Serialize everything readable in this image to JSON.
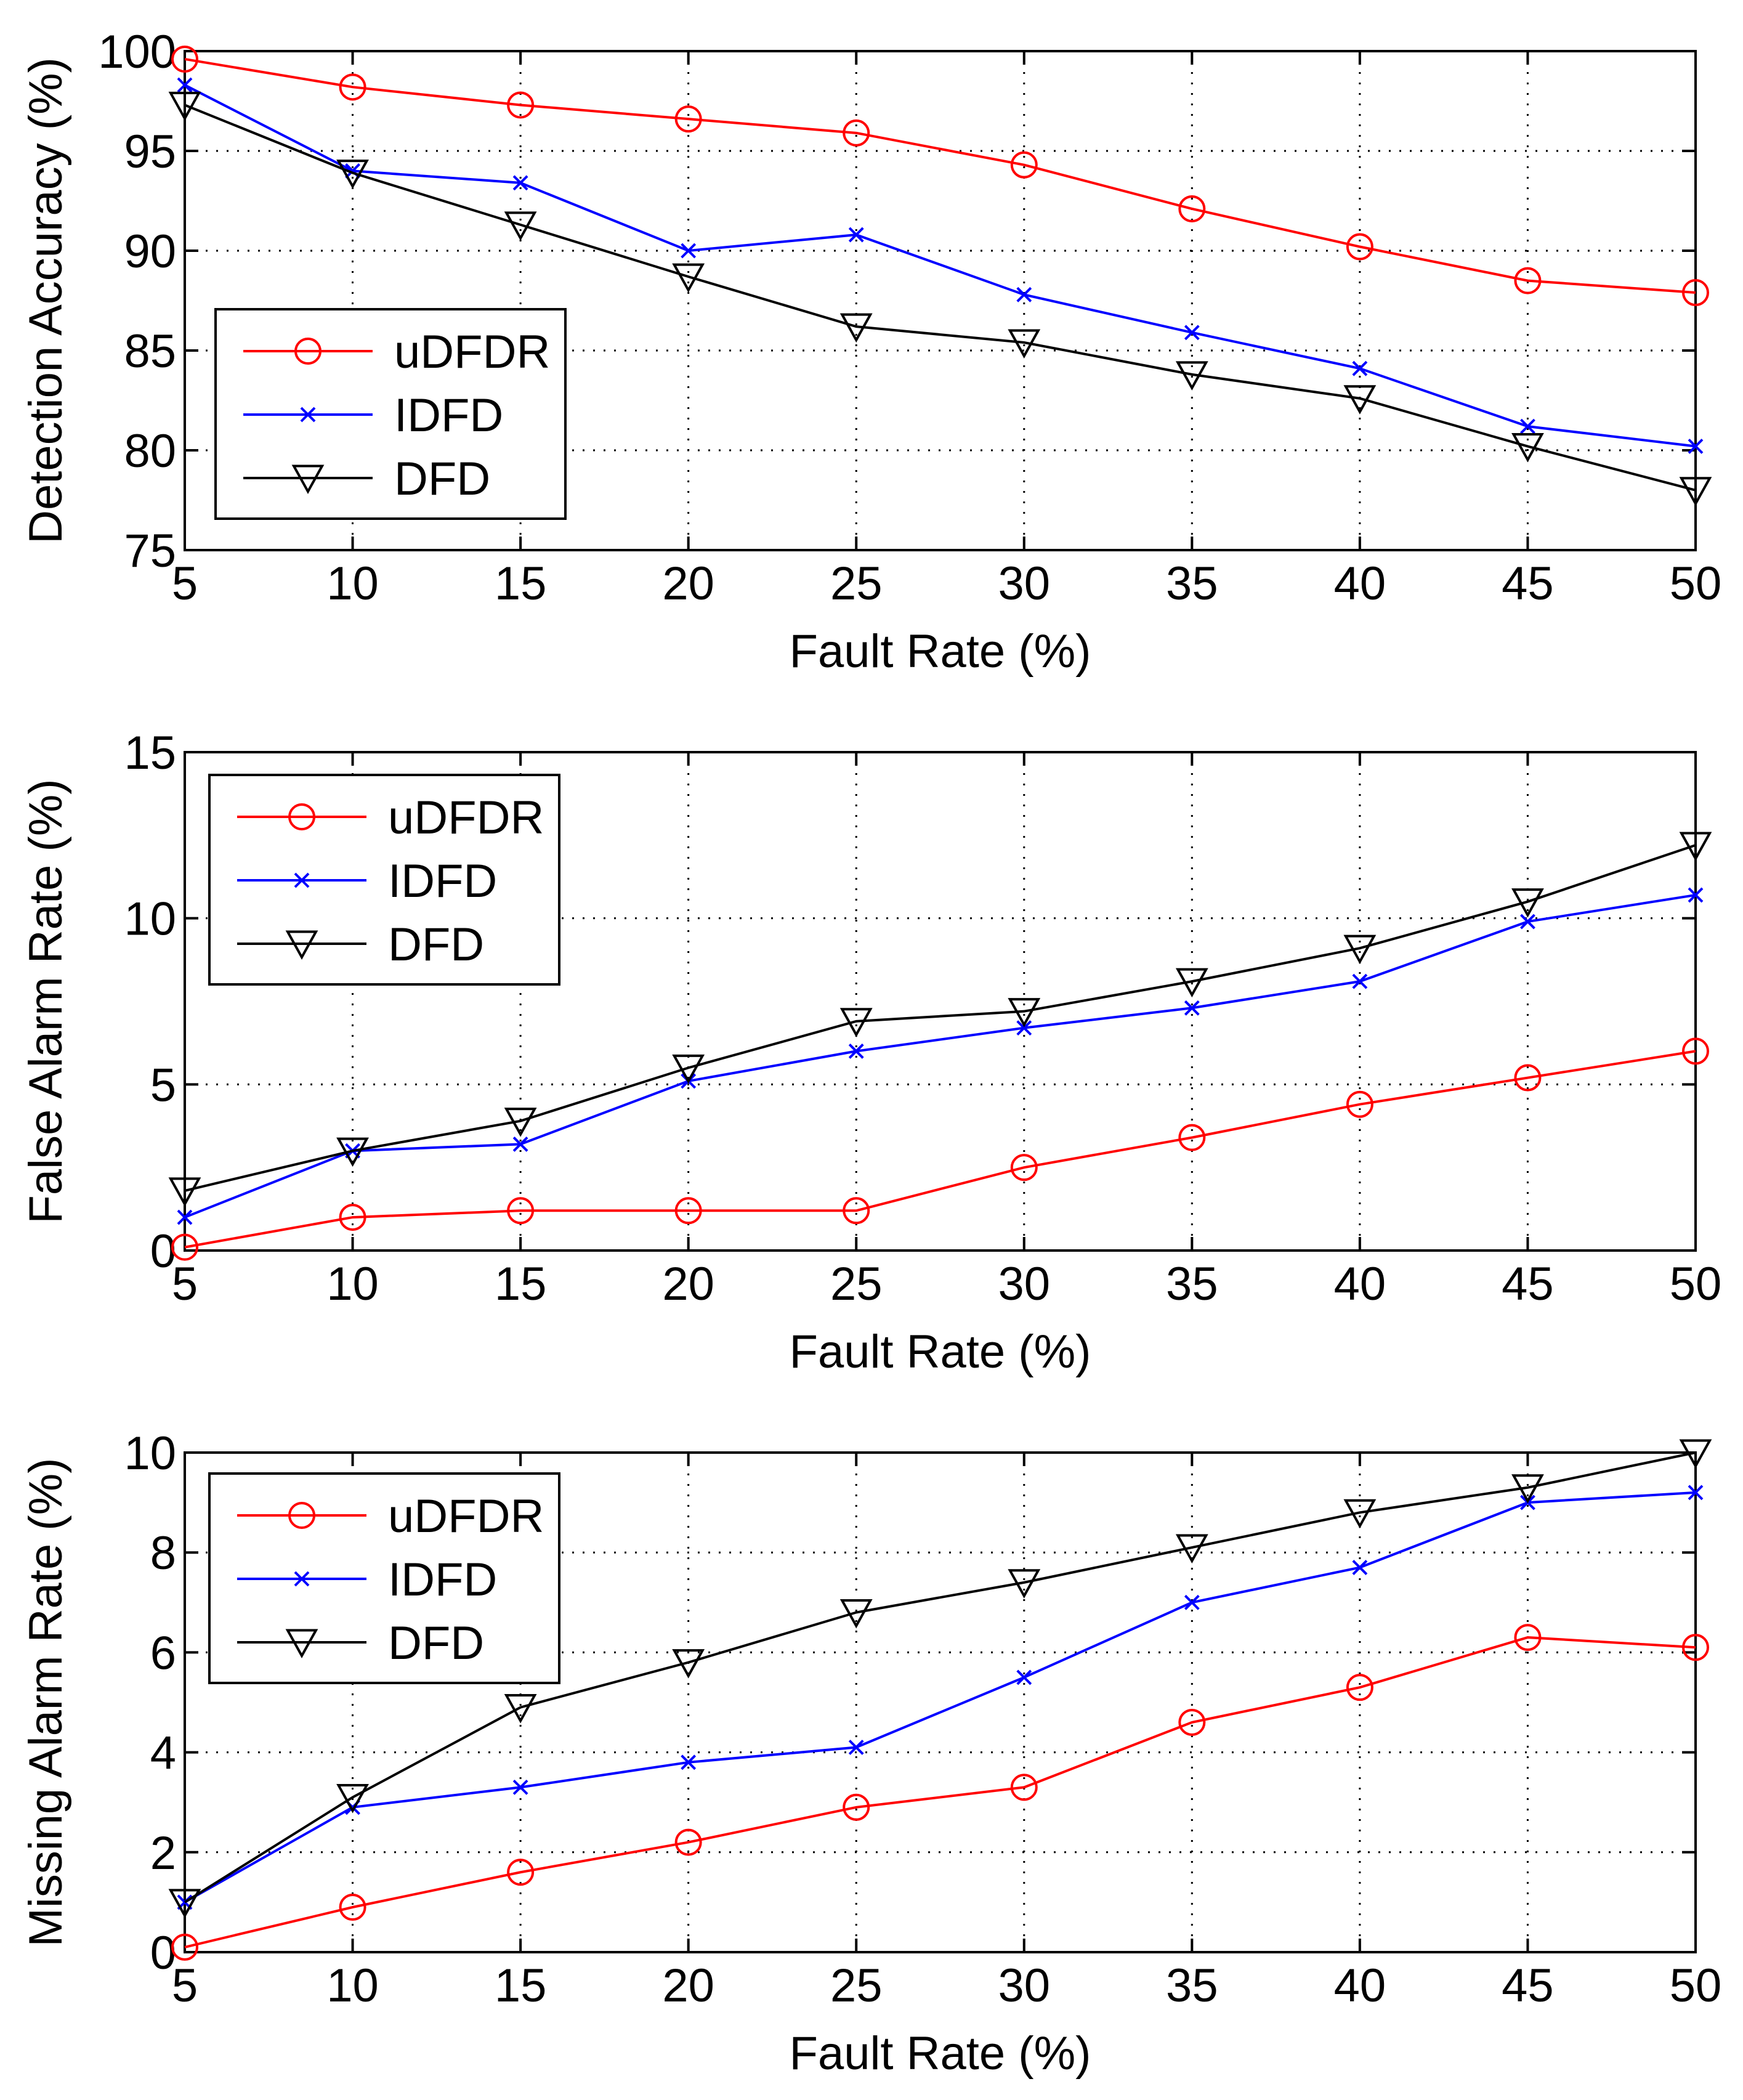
{
  "chart_data": [
    {
      "type": "line",
      "xlabel": "Fault Rate (%)",
      "ylabel": "Detection Accuracy (%)",
      "x": [
        5,
        10,
        15,
        20,
        25,
        30,
        35,
        40,
        45,
        50
      ],
      "xlim": [
        5,
        50
      ],
      "ylim": [
        75,
        100
      ],
      "xticks": [
        5,
        10,
        15,
        20,
        25,
        30,
        35,
        40,
        45,
        50
      ],
      "yticks": [
        75,
        80,
        85,
        90,
        95,
        100
      ],
      "grid": true,
      "legend_position": "left",
      "series": [
        {
          "name": "uDFDR",
          "color": "#ff0000",
          "marker": "circle",
          "values": [
            99.6,
            98.2,
            97.3,
            96.6,
            95.9,
            94.3,
            92.1,
            90.2,
            88.5,
            87.9
          ]
        },
        {
          "name": "IDFD",
          "color": "#0000ff",
          "marker": "x",
          "values": [
            98.3,
            94.0,
            93.4,
            90.0,
            90.8,
            87.8,
            85.9,
            84.1,
            81.2,
            80.2
          ]
        },
        {
          "name": "DFD",
          "color": "#000000",
          "marker": "triangle-down",
          "values": [
            97.3,
            93.9,
            91.3,
            88.7,
            86.2,
            85.4,
            83.8,
            82.6,
            80.2,
            78.0
          ]
        }
      ]
    },
    {
      "type": "line",
      "xlabel": "Fault Rate (%)",
      "ylabel": "False Alarm Rate (%)",
      "x": [
        5,
        10,
        15,
        20,
        25,
        30,
        35,
        40,
        45,
        50
      ],
      "xlim": [
        5,
        50
      ],
      "ylim": [
        0,
        15
      ],
      "xticks": [
        5,
        10,
        15,
        20,
        25,
        30,
        35,
        40,
        45,
        50
      ],
      "yticks": [
        0,
        5,
        10,
        15
      ],
      "grid": true,
      "legend_position": "top-left",
      "series": [
        {
          "name": "uDFDR",
          "color": "#ff0000",
          "marker": "circle",
          "values": [
            0.1,
            1.0,
            1.2,
            1.2,
            1.2,
            2.5,
            3.4,
            4.4,
            5.2,
            6.0
          ]
        },
        {
          "name": "IDFD",
          "color": "#0000ff",
          "marker": "x",
          "values": [
            1.0,
            3.0,
            3.2,
            5.1,
            6.0,
            6.7,
            7.3,
            8.1,
            9.9,
            10.7
          ]
        },
        {
          "name": "DFD",
          "color": "#000000",
          "marker": "triangle-down",
          "values": [
            1.8,
            3.0,
            3.9,
            5.5,
            6.9,
            7.2,
            8.1,
            9.1,
            10.5,
            12.2
          ]
        }
      ]
    },
    {
      "type": "line",
      "xlabel": "Fault Rate (%)",
      "ylabel": "Missing Alarm Rate (%)",
      "x": [
        5,
        10,
        15,
        20,
        25,
        30,
        35,
        40,
        45,
        50
      ],
      "xlim": [
        5,
        50
      ],
      "ylim": [
        0,
        10
      ],
      "xticks": [
        5,
        10,
        15,
        20,
        25,
        30,
        35,
        40,
        45,
        50
      ],
      "yticks": [
        0,
        2,
        4,
        6,
        8,
        10
      ],
      "grid": true,
      "legend_position": "top-left",
      "series": [
        {
          "name": "uDFDR",
          "color": "#ff0000",
          "marker": "circle",
          "values": [
            0.1,
            0.9,
            1.6,
            2.2,
            2.9,
            3.3,
            4.6,
            5.3,
            6.3,
            6.1
          ]
        },
        {
          "name": "IDFD",
          "color": "#0000ff",
          "marker": "x",
          "values": [
            1.0,
            2.9,
            3.3,
            3.8,
            4.1,
            5.5,
            7.0,
            7.7,
            9.0,
            9.2
          ]
        },
        {
          "name": "DFD",
          "color": "#000000",
          "marker": "triangle-down",
          "values": [
            1.0,
            3.1,
            4.9,
            5.8,
            6.8,
            7.4,
            8.1,
            8.8,
            9.3,
            10.0
          ]
        }
      ]
    }
  ]
}
